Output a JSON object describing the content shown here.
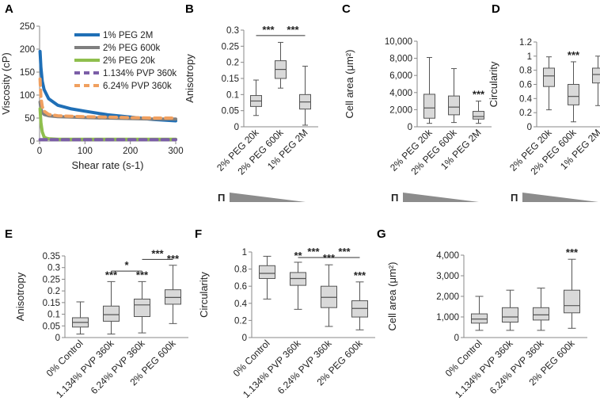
{
  "chart_data": [
    {
      "id": "A",
      "type": "line",
      "panel_label": "A",
      "xlabel": "Shear rate (s-1)",
      "ylabel": "Viscosity (cP)",
      "xlim": [
        0,
        300
      ],
      "ylim": [
        0,
        250
      ],
      "xticks": [
        0,
        100,
        200,
        300
      ],
      "yticks": [
        0,
        50,
        100,
        150,
        200,
        250
      ],
      "series": [
        {
          "name": "1% PEG 2M",
          "color": "#1f6fb6",
          "dashed": false,
          "x": [
            1,
            3,
            6,
            10,
            20,
            40,
            70,
            100,
            150,
            200,
            250,
            300
          ],
          "y": [
            195,
            160,
            130,
            112,
            92,
            78,
            70,
            65,
            57,
            52,
            47,
            44
          ]
        },
        {
          "name": "2% PEG 600k",
          "color": "#7f7f7f",
          "dashed": false,
          "x": [
            1,
            3,
            6,
            10,
            20,
            40,
            70,
            100,
            150,
            200,
            250,
            300
          ],
          "y": [
            85,
            70,
            62,
            58,
            55,
            53,
            52,
            51,
            50,
            49,
            48,
            48
          ]
        },
        {
          "name": "2% PEG 20k",
          "color": "#8fbf4d",
          "dashed": false,
          "x": [
            1,
            3,
            6,
            10,
            15,
            20,
            40,
            100,
            200,
            300
          ],
          "y": [
            70,
            40,
            20,
            9,
            6,
            5,
            4,
            4,
            4,
            4
          ]
        },
        {
          "name": "1.134% PVP 360k",
          "color": "#7b5ea7",
          "dashed": true,
          "x": [
            1,
            10,
            50,
            100,
            200,
            300
          ],
          "y": [
            3,
            3,
            3,
            3,
            3,
            3
          ]
        },
        {
          "name": "6.24% PVP 360k",
          "color": "#f0a060",
          "dashed": true,
          "x": [
            1,
            3,
            6,
            10,
            20,
            40,
            70,
            100,
            150,
            200,
            250,
            300
          ],
          "y": [
            135,
            95,
            75,
            65,
            58,
            55,
            54,
            53,
            52,
            51,
            50,
            50
          ]
        }
      ]
    },
    {
      "id": "B",
      "type": "box",
      "panel_label": "B",
      "ylabel": "Anisotropy",
      "ylim": [
        0,
        0.3
      ],
      "yticks": [
        "0",
        "0.05",
        "0.1",
        "0.15",
        "0.2",
        "0.25",
        "0.3"
      ],
      "categories": [
        "2% PEG 20k",
        "2% PEG 600k",
        "1% PEG 2M"
      ],
      "boxes": [
        {
          "min": 0.035,
          "q1": 0.063,
          "median": 0.08,
          "q3": 0.097,
          "max": 0.145
        },
        {
          "min": 0.12,
          "q1": 0.15,
          "median": 0.178,
          "q3": 0.205,
          "max": 0.262
        },
        {
          "min": 0.005,
          "q1": 0.055,
          "median": 0.077,
          "q3": 0.1,
          "max": 0.188
        }
      ],
      "brackets": [
        {
          "from": 0,
          "to": 1,
          "y": 0.283,
          "label": "***"
        },
        {
          "from": 1,
          "to": 2,
          "y": 0.283,
          "label": "***"
        }
      ],
      "pi_label": "Π"
    },
    {
      "id": "C",
      "type": "box",
      "panel_label": "C",
      "ylabel": "Cell area (μm²)",
      "ylim": [
        0,
        10000
      ],
      "yticks": [
        "0",
        "2,000",
        "4,000",
        "6,000",
        "8,000",
        "10,000"
      ],
      "categories": [
        "2% PEG 20k",
        "2% PEG 600k",
        "1% PEG 2M"
      ],
      "boxes": [
        {
          "min": 400,
          "q1": 1000,
          "median": 2200,
          "q3": 3800,
          "max": 8100
        },
        {
          "min": 500,
          "q1": 1400,
          "median": 2300,
          "q3": 3600,
          "max": 6800
        },
        {
          "min": 400,
          "q1": 900,
          "median": 1200,
          "q3": 1800,
          "max": 3000
        }
      ],
      "star_labels": [
        {
          "index": 2,
          "label": "***"
        }
      ],
      "pi_label": "Π"
    },
    {
      "id": "D",
      "type": "box",
      "panel_label": "D",
      "ylabel": "Circularity",
      "ylim": [
        0,
        1.2
      ],
      "yticks": [
        "0",
        "0.2",
        "0.4",
        "0.6",
        "0.8",
        "1",
        "1.2"
      ],
      "categories": [
        "2% PEG 20k",
        "2% PEG 600k",
        "1% PEG 2M"
      ],
      "boxes": [
        {
          "min": 0.24,
          "q1": 0.57,
          "median": 0.72,
          "q3": 0.83,
          "max": 0.99
        },
        {
          "min": 0.07,
          "q1": 0.31,
          "median": 0.43,
          "q3": 0.6,
          "max": 0.92
        },
        {
          "min": 0.3,
          "q1": 0.62,
          "median": 0.74,
          "q3": 0.83,
          "max": 1.0
        }
      ],
      "star_labels": [
        {
          "index": 1,
          "label": "***"
        }
      ],
      "pi_label": "Π"
    },
    {
      "id": "E",
      "type": "box",
      "panel_label": "E",
      "ylabel": "Anisotropy",
      "ylim": [
        0,
        0.35
      ],
      "yticks": [
        "0",
        "0.05",
        "0.1",
        "0.15",
        "0.2",
        "0.25",
        "0.3",
        "0.35"
      ],
      "categories": [
        "0% Control",
        "1.134% PVP 360k",
        "6.24% PVP 360k",
        "2% PEG 600k"
      ],
      "boxes": [
        {
          "min": 0.015,
          "q1": 0.045,
          "median": 0.065,
          "q3": 0.085,
          "max": 0.153
        },
        {
          "min": 0.015,
          "q1": 0.07,
          "median": 0.098,
          "q3": 0.135,
          "max": 0.24
        },
        {
          "min": 0.02,
          "q1": 0.09,
          "median": 0.14,
          "q3": 0.165,
          "max": 0.24
        },
        {
          "min": 0.06,
          "q1": 0.143,
          "median": 0.172,
          "q3": 0.205,
          "max": 0.31
        }
      ],
      "star_labels": [
        {
          "index": 1,
          "label": "***"
        },
        {
          "index": 2,
          "label": "***"
        },
        {
          "index": 3,
          "label": "***"
        }
      ],
      "brackets": [
        {
          "from": 1,
          "to": 2,
          "y": 0.285,
          "label": "*"
        },
        {
          "from": 2,
          "to": 3,
          "y": 0.335,
          "label": "***"
        }
      ]
    },
    {
      "id": "F",
      "type": "box",
      "panel_label": "F",
      "ylabel": "Circularity",
      "ylim": [
        0,
        1
      ],
      "yticks": [
        "0",
        "0.2",
        "0.4",
        "0.6",
        "0.8",
        "1"
      ],
      "categories": [
        "0% Control",
        "1.134% PVP 360k",
        "6.24% PVP 360k",
        "2% PEG 600k"
      ],
      "boxes": [
        {
          "min": 0.45,
          "q1": 0.69,
          "median": 0.75,
          "q3": 0.84,
          "max": 0.95
        },
        {
          "min": 0.33,
          "q1": 0.61,
          "median": 0.69,
          "q3": 0.76,
          "max": 0.88
        },
        {
          "min": 0.13,
          "q1": 0.35,
          "median": 0.47,
          "q3": 0.6,
          "max": 0.85
        },
        {
          "min": 0.09,
          "q1": 0.24,
          "median": 0.34,
          "q3": 0.43,
          "max": 0.65
        }
      ],
      "star_labels": [
        {
          "index": 1,
          "label": "**"
        },
        {
          "index": 2,
          "label": "***"
        },
        {
          "index": 3,
          "label": "***"
        }
      ],
      "brackets": [
        {
          "from": 1,
          "to": 2,
          "y": 0.935,
          "label": "***"
        },
        {
          "from": 2,
          "to": 3,
          "y": 0.935,
          "label": "***"
        }
      ]
    },
    {
      "id": "G",
      "type": "box",
      "panel_label": "G",
      "ylabel": "Cell area (μm²)",
      "ylim": [
        0,
        4000
      ],
      "yticks": [
        "0",
        "1,000",
        "2,000",
        "3,000",
        "4,000"
      ],
      "categories": [
        "0% Control",
        "1.134% PVP 360k",
        "6.24% PVP 360k",
        "2% PEG 600k"
      ],
      "boxes": [
        {
          "min": 350,
          "q1": 700,
          "median": 900,
          "q3": 1150,
          "max": 2000
        },
        {
          "min": 350,
          "q1": 750,
          "median": 1000,
          "q3": 1450,
          "max": 2300
        },
        {
          "min": 350,
          "q1": 850,
          "median": 1100,
          "q3": 1450,
          "max": 2400
        },
        {
          "min": 450,
          "q1": 1200,
          "median": 1550,
          "q3": 2300,
          "max": 3800
        }
      ],
      "star_labels": [
        {
          "index": 3,
          "label": "***"
        }
      ]
    }
  ]
}
